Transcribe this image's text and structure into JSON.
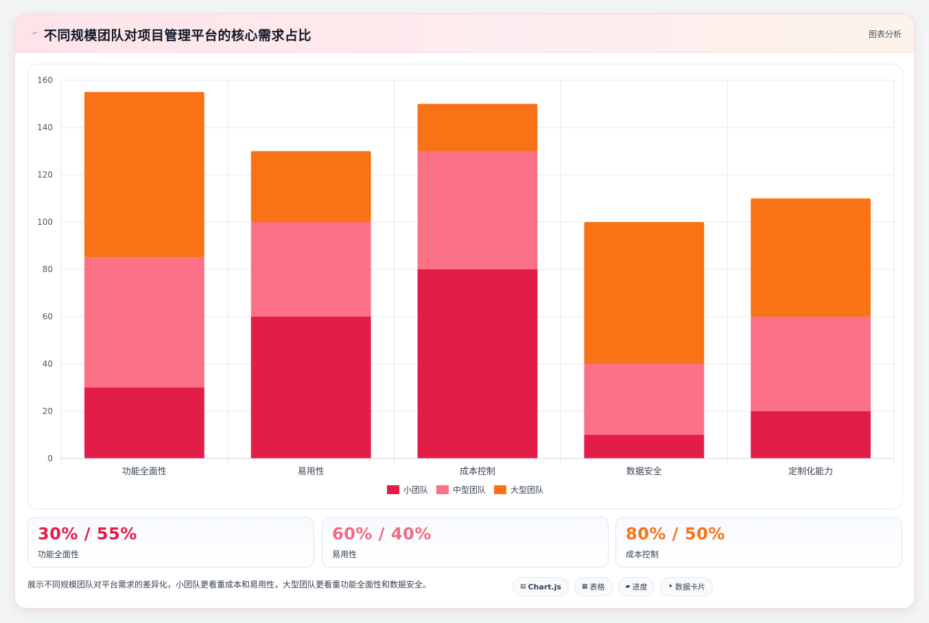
{
  "header": {
    "icon": "sparkle-icon",
    "title": "不同规模团队对项目管理平台的核心需求占比",
    "tag": "图表分析"
  },
  "chart_data": {
    "type": "bar",
    "stacked": true,
    "categories": [
      "功能全面性",
      "易用性",
      "成本控制",
      "数据安全",
      "定制化能力"
    ],
    "series": [
      {
        "name": "小团队",
        "color": "#e11d48",
        "values": [
          30,
          60,
          80,
          10,
          20
        ]
      },
      {
        "name": "中型团队",
        "color": "#fb7185",
        "values": [
          55,
          40,
          50,
          30,
          40
        ]
      },
      {
        "name": "大型团队",
        "color": "#f97316",
        "values": [
          70,
          30,
          20,
          60,
          50
        ]
      }
    ],
    "ylim": [
      0,
      160
    ],
    "yticks": [
      0,
      20,
      40,
      60,
      80,
      100,
      120,
      140,
      160
    ],
    "grid": true,
    "legend_position": "bottom"
  },
  "stats": [
    {
      "value": "30% / 55%",
      "label": "功能全面性",
      "color": "#e11d48"
    },
    {
      "value": "60% / 40%",
      "label": "易用性",
      "color": "#f16b82"
    },
    {
      "value": "80% / 50%",
      "label": "成本控制",
      "color": "#f97316"
    }
  ],
  "footer": {
    "note": "展示不同规模团队对平台需求的差异化，小团队更看重成本和易用性，大型团队更看重功能全面性和数据安全。",
    "chips": [
      {
        "icon": "▤",
        "label": "Chart.js",
        "name": "chart-js-chip"
      },
      {
        "icon": "▦",
        "label": "表格",
        "name": "table-chip"
      },
      {
        "icon": "▰",
        "label": "进度",
        "name": "progress-chip"
      },
      {
        "icon": "✦",
        "label": "数据卡片",
        "name": "data-card-chip"
      }
    ]
  }
}
